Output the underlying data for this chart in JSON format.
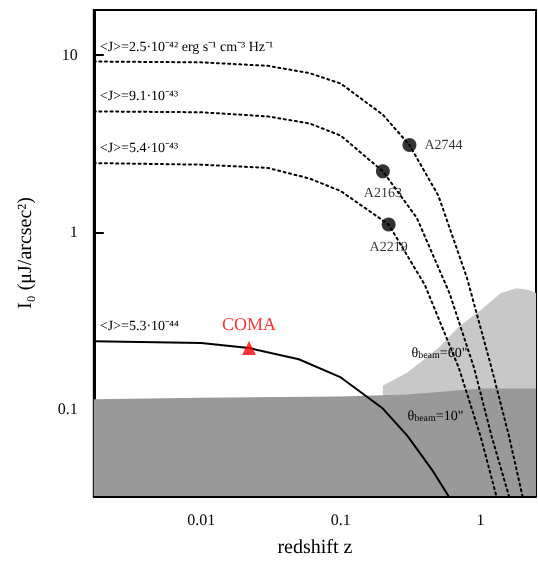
{
  "chart_data": {
    "type": "line",
    "xlabel": "redshift z",
    "ylabel": "I₀ (μJ/arcsec²)",
    "log": "xy",
    "xlim": [
      0.0017,
      2.5
    ],
    "ylim": [
      0.032,
      18
    ],
    "xticks": [
      0.01,
      0.1,
      1
    ],
    "yticks": [
      0.1,
      1,
      10
    ],
    "grid": false,
    "legend": false,
    "marker": "none",
    "series": [
      {
        "type": "area",
        "name": "θ$_{beam}$=60\"",
        "color": "#c8c8c8",
        "x": [
          0.2,
          0.3,
          0.5,
          0.7,
          1.0,
          1.4,
          1.8,
          2.2,
          2.5
        ],
        "values": [
          0.135,
          0.16,
          0.22,
          0.29,
          0.36,
          0.45,
          0.48,
          0.47,
          0.45
        ]
      },
      {
        "type": "area",
        "name": "θ$_{beam}$=10\"",
        "color": "#999999",
        "x": [
          0.0017,
          0.01,
          0.1,
          0.3,
          1,
          2.5
        ],
        "values": [
          0.113,
          0.115,
          0.117,
          0.12,
          0.13,
          0.13
        ]
      },
      {
        "name": "<J>=2.5·10⁻⁴² erg s⁻¹ cm⁻³ Hz⁻¹",
        "color": "#000000",
        "line_style": "dotted",
        "x": [
          0.0017,
          0.01,
          0.03,
          0.06,
          0.1,
          0.2,
          0.31,
          0.5,
          0.8,
          1.2,
          1.6,
          2.0
        ],
        "values": [
          9.2,
          9.1,
          8.7,
          7.9,
          6.9,
          4.6,
          3.1,
          1.6,
          0.55,
          0.17,
          0.07,
          0.032
        ]
      },
      {
        "name": "<J>=9.1·10⁻⁴³",
        "color": "#000000",
        "line_style": "dotted",
        "x": [
          0.0017,
          0.01,
          0.03,
          0.06,
          0.1,
          0.2,
          0.35,
          0.6,
          0.9,
          1.2,
          1.6
        ],
        "values": [
          4.8,
          4.75,
          4.5,
          4.1,
          3.5,
          2.2,
          1.2,
          0.45,
          0.17,
          0.07,
          0.032
        ]
      },
      {
        "name": "<J>=5.4·10⁻⁴³",
        "color": "#000000",
        "line_style": "dotted",
        "x": [
          0.0017,
          0.01,
          0.03,
          0.06,
          0.1,
          0.22,
          0.4,
          0.7,
          1.0,
          1.3
        ],
        "values": [
          2.45,
          2.4,
          2.3,
          2.0,
          1.7,
          1.1,
          0.5,
          0.17,
          0.07,
          0.032
        ]
      },
      {
        "name": "<J>=5.3·10⁻⁴⁴",
        "color": "#000000",
        "line_style": "solid",
        "x": [
          0.0017,
          0.01,
          0.022,
          0.05,
          0.1,
          0.2,
          0.3,
          0.45,
          0.59
        ],
        "values": [
          0.24,
          0.235,
          0.22,
          0.19,
          0.15,
          0.1,
          0.07,
          0.045,
          0.032
        ]
      },
      {
        "type": "scatter",
        "name": "A2744",
        "color": "#000000",
        "marker": "circle",
        "x": [
          0.31
        ],
        "values": [
          3.1
        ]
      },
      {
        "type": "scatter",
        "name": "A2163",
        "color": "#000000",
        "marker": "circle",
        "x": [
          0.2
        ],
        "values": [
          2.2
        ]
      },
      {
        "type": "scatter",
        "name": "A2219",
        "color": "#000000",
        "marker": "circle",
        "x": [
          0.22
        ],
        "values": [
          1.1
        ]
      },
      {
        "type": "scatter",
        "name": "COMA",
        "color": "#ff0000",
        "marker": "triangle",
        "x": [
          0.022
        ],
        "values": [
          0.22
        ]
      }
    ]
  }
}
